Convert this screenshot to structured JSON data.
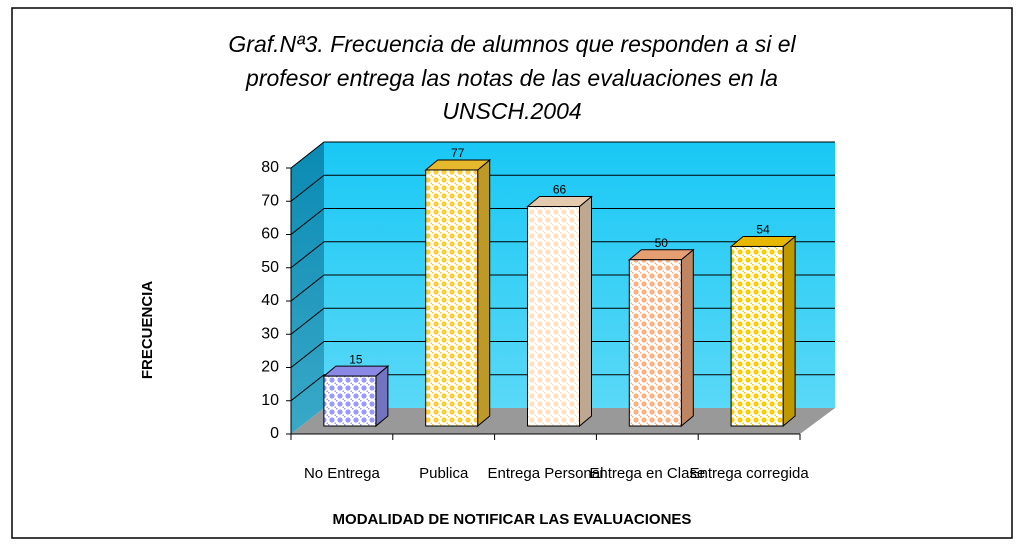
{
  "chart_data": {
    "type": "bar3d",
    "title": [
      "Graf.Nª3. Frecuencia de alumnos que responden a si el",
      "profesor entrega las notas de las evaluaciones en la",
      "UNSCH.2004"
    ],
    "categories": [
      "No Entrega",
      "Publica",
      "Entrega Personal",
      "Entrega en Clase",
      "Entrega corregida"
    ],
    "values": [
      15,
      77,
      66,
      50,
      54
    ],
    "colors": [
      "#9999ff",
      "#ffcc33",
      "#ffe0c0",
      "#ffb080",
      "#ffcc00"
    ],
    "ylabel": "FRECUENCIA",
    "xlabel": "MODALIDAD DE NOTIFICAR LAS EVALUACIONES",
    "ylim": [
      0,
      80
    ],
    "yticks": [
      0,
      10,
      20,
      30,
      40,
      50,
      60,
      70,
      80
    ],
    "grid": true
  }
}
